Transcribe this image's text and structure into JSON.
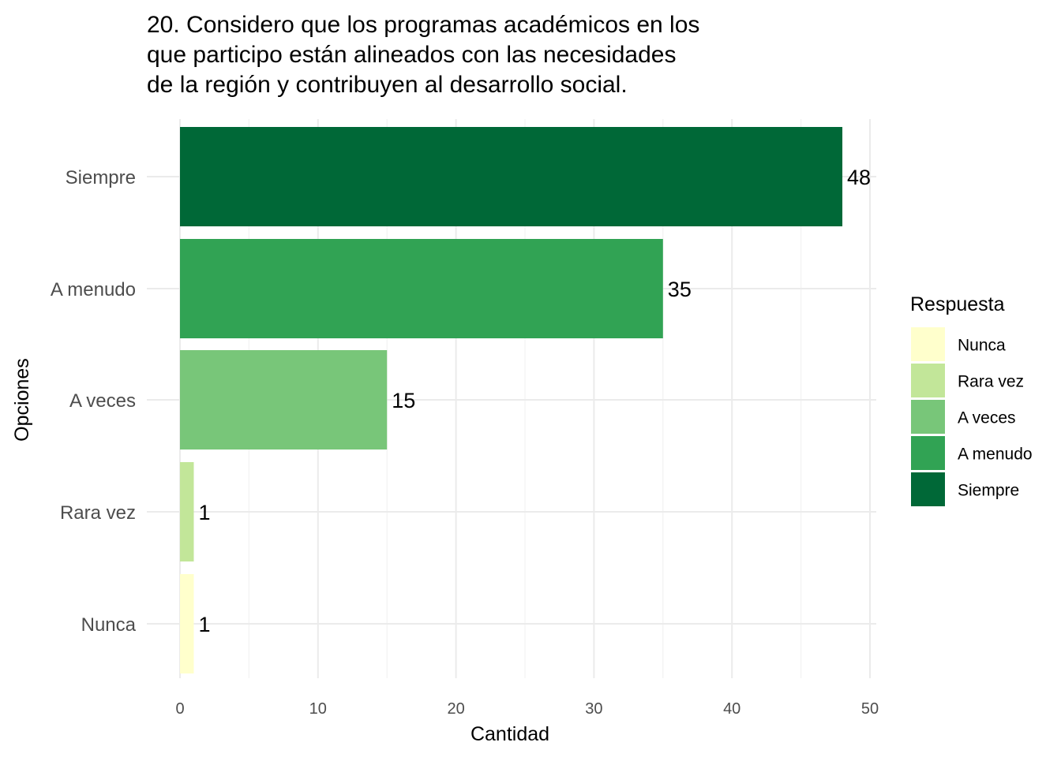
{
  "chart_data": {
    "type": "bar",
    "orientation": "horizontal",
    "title_lines": [
      "20. Considero que los programas académicos en los",
      "que participo están alineados con las necesidades",
      "de la región y contribuyen al desarrollo social."
    ],
    "xlabel": "Cantidad",
    "ylabel": "Opciones",
    "categories": [
      "Nunca",
      "Rara vez",
      "A veces",
      "A menudo",
      "Siempre"
    ],
    "values": [
      1,
      1,
      15,
      35,
      48
    ],
    "data_labels": [
      "1",
      "1",
      "15",
      "35",
      "48"
    ],
    "colors": [
      "#ffffcc",
      "#c2e699",
      "#78c679",
      "#31a354",
      "#006837"
    ],
    "xlim": [
      0,
      50
    ],
    "xticks": [
      0,
      10,
      20,
      30,
      40,
      50
    ],
    "grid": true,
    "legend": {
      "title": "Respuesta",
      "position": "right",
      "items": [
        "Nunca",
        "Rara vez",
        "A veces",
        "A menudo",
        "Siempre"
      ]
    }
  }
}
